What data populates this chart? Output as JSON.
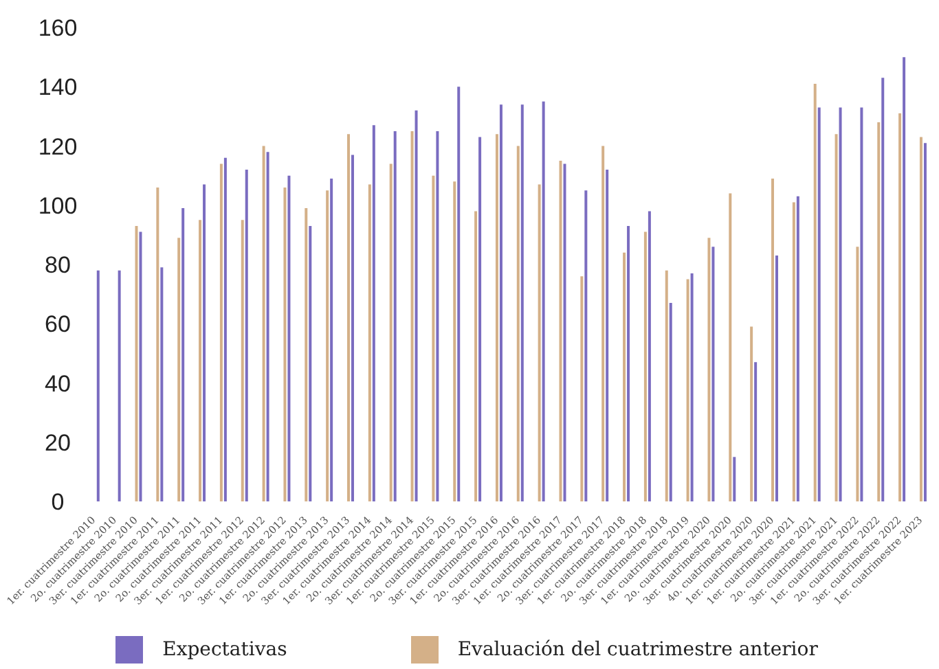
{
  "chart_data": {
    "type": "bar",
    "categories": [
      "1er. cuatrimestre 2010",
      "2o. cuatrimestre 2010",
      "3er. cuatrimestre 2010",
      "1er. cuatrimestre 2011",
      "2o. cuatrimestre 2011",
      "2o. cuatrimestre 2011",
      "3er. cuatrimestre 2011",
      "1er. cuatrimestre 2012",
      "2o. cuatrimestre 2012",
      "3er. cuatrimestre 2012",
      "1er. cuatrimestre 2013",
      "2o. cuatrimestre 2013",
      "3er. cuatrimestre 2013",
      "1er. cuatrimestre 2014",
      "2o. cuatrimestre 2014",
      "3er. cuatrimestre 2014",
      "1er. cuatrimestre 2015",
      "2o. cuatrimestre 2015",
      "3er. cuatrimestre 2015",
      "1er. cuatrimestre 2016",
      "2o. cuatrimestre 2016",
      "3er. cuatrimestre 2016",
      "1er. cuatrimestre 2017",
      "2o. cuatrimestre 2017",
      "3er. cuatrimestre 2017",
      "1er. cuatrimestre 2018",
      "2o. cuatrimestre 2018",
      "3er. cuatrimestre 2018",
      "1er. cuatrimestre 2019",
      "2o. cuatrimestre 2020",
      "3er. cuatrimestre 2020",
      "4o. cuatrimestre 2020",
      "1er. cuatrimestre 2020",
      "1er. cuatrimestre 2021",
      "2o. cuatrimestre 2021",
      "3er. cuatrimestre 2021",
      "1er. cuatrimestre 2022",
      "2o. cuatrimestre 2022",
      "3er. cuatrimestre 2022",
      "1er. cuatrimestre 2023"
    ],
    "series": [
      {
        "name": "Expectativas",
        "color": "#7a6cc0",
        "values": [
          78,
          78,
          91,
          79,
          99,
          107,
          116,
          112,
          118,
          110,
          93,
          109,
          117,
          127,
          125,
          132,
          125,
          140,
          123,
          134,
          134,
          135,
          114,
          105,
          112,
          93,
          98,
          67,
          77,
          86,
          15,
          47,
          83,
          103,
          133,
          133,
          133,
          143,
          150,
          121
        ]
      },
      {
        "name": "Evaluación del cuatrimestre anterior",
        "color": "#d4b088",
        "values": [
          null,
          null,
          93,
          106,
          89,
          95,
          114,
          95,
          120,
          106,
          99,
          105,
          124,
          107,
          114,
          125,
          110,
          108,
          98,
          124,
          120,
          107,
          115,
          76,
          120,
          84,
          91,
          78,
          75,
          89,
          104,
          59,
          109,
          101,
          141,
          124,
          86,
          128,
          131,
          123
        ]
      }
    ],
    "ylim": [
      0,
      160
    ],
    "yticks": [
      0,
      20,
      40,
      60,
      80,
      100,
      120,
      140,
      160
    ],
    "legend": "bottom"
  }
}
